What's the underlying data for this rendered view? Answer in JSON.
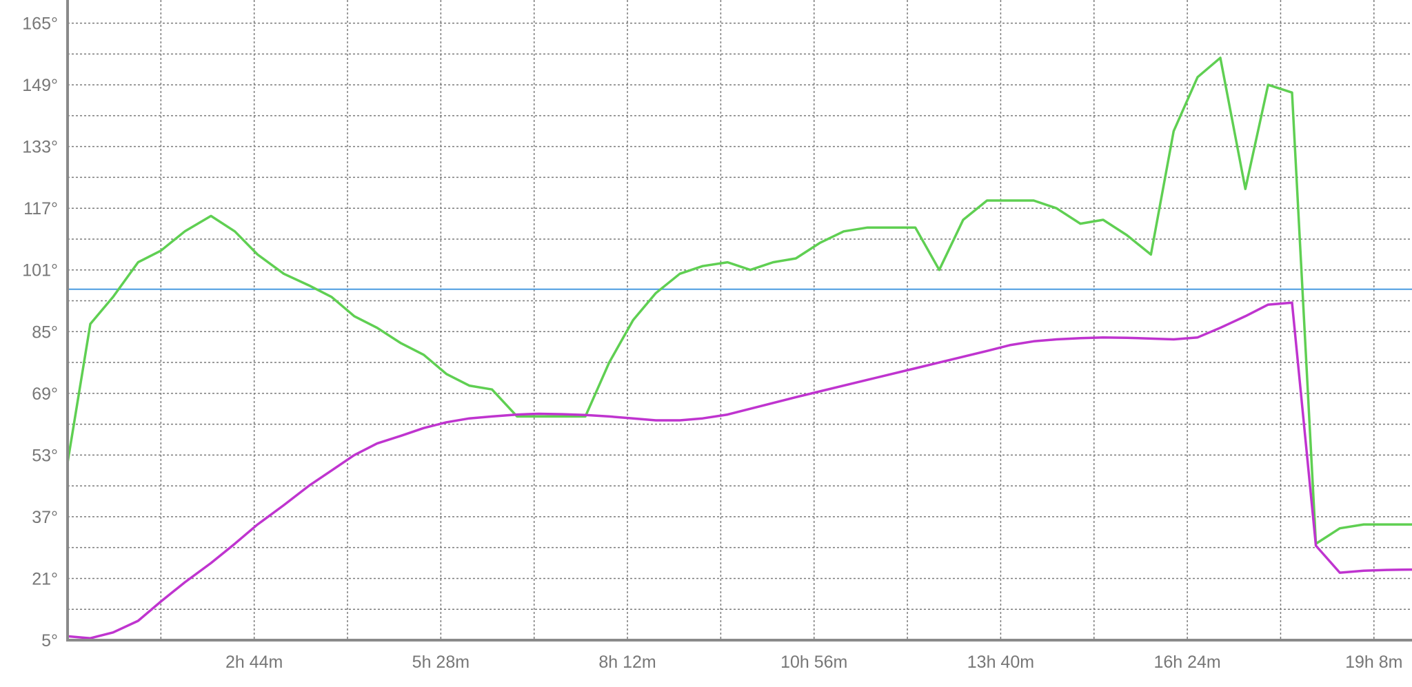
{
  "chart_data": {
    "type": "line",
    "x_unit": "minutes",
    "xlim": [
      0,
      1156
    ],
    "ylim": [
      5,
      171
    ],
    "y_ticks": [
      5,
      21,
      37,
      53,
      69,
      85,
      101,
      117,
      133,
      149,
      165
    ],
    "y_tick_labels": [
      "5°",
      "21°",
      "37°",
      "53°",
      "69°",
      "85°",
      "101°",
      "117°",
      "133°",
      "149°",
      "165°"
    ],
    "x_ticks": [
      164,
      328,
      492,
      656,
      820,
      984,
      1148
    ],
    "x_tick_labels": [
      "2h 44m",
      "5h 28m",
      "8h 12m",
      "10h 56m",
      "13h 40m",
      "16h 24m",
      "19h 8m"
    ],
    "x_grid_step": 82,
    "y_grid_step": 8,
    "grid": true,
    "reference_line": {
      "value": 96,
      "color": "#4a9be0"
    },
    "series": [
      {
        "color": "#5fcf52",
        "x": [
          0,
          20,
          40,
          62,
          82,
          103,
          126,
          147,
          167,
          190,
          212,
          232,
          252,
          272,
          293,
          313,
          333,
          353,
          373,
          395,
          414,
          435,
          455,
          476,
          497,
          517,
          538,
          558,
          580,
          600,
          620,
          640,
          661,
          682,
          703,
          724,
          745,
          766,
          787,
          808,
          828,
          849,
          869,
          890,
          910,
          931,
          952,
          972,
          993,
          1013,
          1035,
          1055,
          1076,
          1097,
          1118,
          1139,
          1159,
          1180,
          1200
        ],
        "y": [
          51,
          87,
          94,
          103,
          106,
          111,
          115,
          111,
          105,
          100,
          97,
          94,
          89,
          86,
          82,
          79,
          74,
          71,
          70,
          63,
          63,
          63,
          63,
          77,
          88,
          95,
          100,
          102,
          103,
          101,
          103,
          104,
          108,
          111,
          112,
          112,
          112,
          101,
          114,
          119,
          119,
          119,
          117,
          113,
          114,
          110,
          105,
          137,
          151,
          156,
          122,
          149,
          147,
          30,
          34,
          35,
          35,
          35,
          35
        ]
      },
      {
        "color": "#bf34cf",
        "x": [
          0,
          20,
          40,
          62,
          82,
          103,
          126,
          147,
          167,
          190,
          212,
          232,
          252,
          272,
          293,
          313,
          333,
          353,
          373,
          395,
          414,
          435,
          455,
          476,
          497,
          517,
          538,
          558,
          580,
          600,
          620,
          640,
          661,
          682,
          703,
          724,
          745,
          766,
          787,
          808,
          828,
          849,
          869,
          890,
          910,
          931,
          952,
          972,
          993,
          1013,
          1035,
          1055,
          1076,
          1097,
          1118,
          1139,
          1159,
          1180,
          1200
        ],
        "y": [
          6,
          5.5,
          7,
          10,
          15,
          20,
          25,
          30,
          35,
          40,
          45,
          49,
          53,
          56,
          58,
          60,
          61.5,
          62.5,
          63,
          63.5,
          63.7,
          63.6,
          63.4,
          63,
          62.5,
          62,
          62,
          62.5,
          63.5,
          65,
          66.5,
          68,
          69.5,
          71,
          72.5,
          74,
          75.5,
          77,
          78.5,
          80,
          81.5,
          82.5,
          83,
          83.3,
          83.5,
          83.4,
          83.2,
          83,
          83.5,
          86,
          89,
          92,
          92.5,
          29.5,
          22.5,
          23,
          23.2,
          23.3,
          23.3
        ]
      }
    ]
  }
}
